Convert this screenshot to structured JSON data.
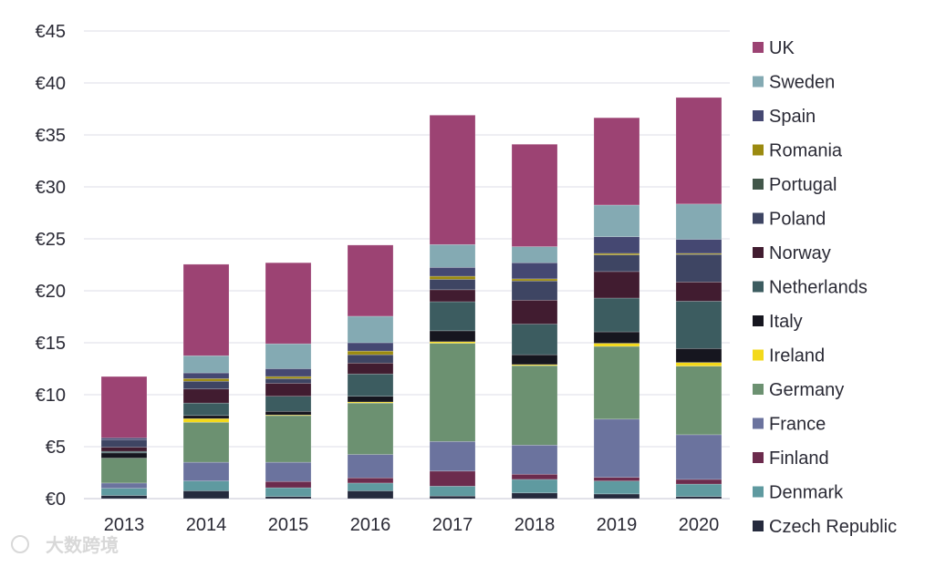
{
  "chart_data": {
    "type": "bar",
    "stacked": true,
    "title": "",
    "xlabel": "",
    "ylabel": "",
    "ylim": [
      0,
      45
    ],
    "y_ticks": [
      "€0",
      "€5",
      "€10",
      "€15",
      "€20",
      "€25",
      "€30",
      "€35",
      "€40",
      "€45"
    ],
    "y_tick_values": [
      0,
      5,
      10,
      15,
      20,
      25,
      30,
      35,
      40,
      45
    ],
    "grid": true,
    "legend_position": "right",
    "categories": [
      "2013",
      "2014",
      "2015",
      "2016",
      "2017",
      "2018",
      "2019",
      "2020"
    ],
    "series": [
      {
        "name": "Czech Republic",
        "color": "#252a3d",
        "values": [
          0.3,
          0.75,
          0.2,
          0.75,
          0.25,
          0.55,
          0.45,
          0.2
        ]
      },
      {
        "name": "Denmark",
        "color": "#5f9aa0",
        "values": [
          0.7,
          0.95,
          0.85,
          0.75,
          0.95,
          1.3,
          1.25,
          1.2
        ]
      },
      {
        "name": "Finland",
        "color": "#6c2b4d",
        "values": [
          0.0,
          0.0,
          0.6,
          0.5,
          1.45,
          0.5,
          0.35,
          0.45
        ]
      },
      {
        "name": "France",
        "color": "#6b739e",
        "values": [
          0.5,
          1.8,
          1.85,
          2.25,
          2.85,
          2.8,
          5.6,
          4.3
        ]
      },
      {
        "name": "Germany",
        "color": "#6c9171",
        "values": [
          2.4,
          3.85,
          4.5,
          4.95,
          9.45,
          7.65,
          7.0,
          6.6
        ]
      },
      {
        "name": "Ireland",
        "color": "#f3d91a",
        "values": [
          0.0,
          0.35,
          0.05,
          0.1,
          0.15,
          0.1,
          0.3,
          0.35
        ]
      },
      {
        "name": "Italy",
        "color": "#16161f",
        "values": [
          0.5,
          0.3,
          0.35,
          0.55,
          1.05,
          0.95,
          1.1,
          1.35
        ]
      },
      {
        "name": "Netherlands",
        "color": "#3c5c60",
        "values": [
          0.15,
          1.2,
          1.45,
          2.15,
          2.8,
          2.95,
          3.25,
          4.55
        ]
      },
      {
        "name": "Norway",
        "color": "#411c30",
        "values": [
          0.4,
          1.35,
          1.25,
          1.05,
          1.15,
          2.3,
          2.55,
          1.85
        ]
      },
      {
        "name": "Poland",
        "color": "#3e4563",
        "values": [
          0.7,
          0.75,
          0.45,
          0.8,
          1.0,
          1.85,
          1.6,
          2.65
        ]
      },
      {
        "name": "Portugal",
        "color": "#42574a",
        "values": [
          0.0,
          0.0,
          0.0,
          0.0,
          0.0,
          0.0,
          0.0,
          0.0
        ]
      },
      {
        "name": "Romania",
        "color": "#9b8a10",
        "values": [
          0.0,
          0.25,
          0.2,
          0.35,
          0.3,
          0.2,
          0.15,
          0.1
        ]
      },
      {
        "name": "Spain",
        "color": "#454872",
        "values": [
          0.2,
          0.55,
          0.75,
          0.8,
          0.85,
          1.55,
          1.6,
          1.35
        ]
      },
      {
        "name": "Sweden",
        "color": "#84aab3",
        "values": [
          0.0,
          1.65,
          2.4,
          2.55,
          2.2,
          1.55,
          3.05,
          3.4
        ]
      },
      {
        "name": "UK",
        "color": "#9c4373",
        "values": [
          5.9,
          8.8,
          7.8,
          6.85,
          12.45,
          9.85,
          8.4,
          10.25
        ]
      }
    ],
    "watermark": "大数跨境"
  }
}
